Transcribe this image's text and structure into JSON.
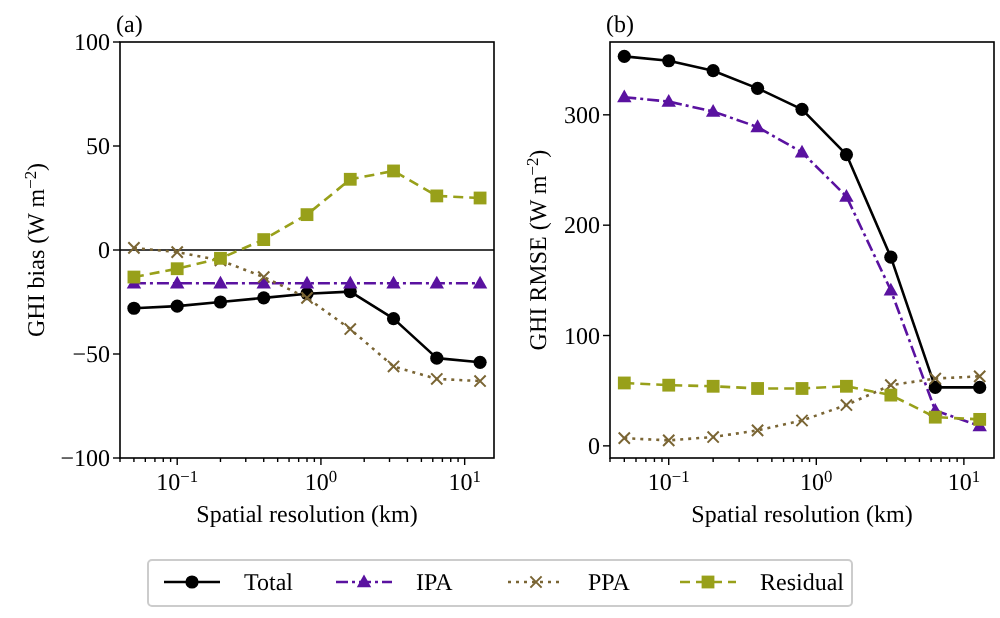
{
  "chart_data": [
    {
      "type": "line",
      "title": "(a)",
      "xlabel": "Spatial resolution (km)",
      "ylabel": "GHI bias (W m$^{−2}$)",
      "log": "x",
      "legend": "bottom",
      "x": [
        0.05,
        0.1,
        0.2,
        0.4,
        0.8,
        1.6,
        3.2,
        6.4,
        12.8
      ],
      "xlim": [
        0.04,
        16
      ],
      "ylim": [
        -100,
        100
      ],
      "yticks": [
        {
          "value": -100,
          "label": "−100"
        },
        {
          "value": -50,
          "label": "−50"
        },
        0,
        50,
        100
      ],
      "xticks": [
        {
          "value": 0.04,
          "label": null
        },
        {
          "value": 0.05,
          "label": null
        },
        {
          "value": 0.06,
          "label": null
        },
        {
          "value": 0.07,
          "label": null
        },
        {
          "value": 0.08,
          "label": null
        },
        {
          "value": 0.09,
          "label": null
        },
        {
          "value": 0.1,
          "label": "10$^{−1}$"
        },
        {
          "value": 0.2,
          "label": null
        },
        {
          "value": 0.3,
          "label": null
        },
        {
          "value": 0.4,
          "label": null
        },
        {
          "value": 0.5,
          "label": null
        },
        {
          "value": 0.6,
          "label": null
        },
        {
          "value": 0.7,
          "label": null
        },
        {
          "value": 0.8,
          "label": null
        },
        {
          "value": 0.9,
          "label": null
        },
        {
          "value": 1,
          "label": "10$^{0}$"
        },
        {
          "value": 2,
          "label": null
        },
        {
          "value": 3,
          "label": null
        },
        {
          "value": 4,
          "label": null
        },
        {
          "value": 5,
          "label": null
        },
        {
          "value": 6,
          "label": null
        },
        {
          "value": 7,
          "label": null
        },
        {
          "value": 8,
          "label": null
        },
        {
          "value": 9,
          "label": null
        },
        {
          "value": 10,
          "label": "10$^{1}$"
        }
      ],
      "ref_lines": [
        {
          "axis": "y",
          "value": 0,
          "color": "#000000"
        }
      ],
      "series": [
        {
          "name": "Total",
          "color": "#000000",
          "marker": "circle",
          "line_style": "solid",
          "values": [
            -28,
            -27,
            -25,
            -23,
            -21,
            -20,
            -33,
            -52,
            -54
          ]
        },
        {
          "name": "IPA",
          "color": "#5a12a0",
          "marker": "triangle",
          "line_style": "dashdot",
          "values": [
            -16,
            -16,
            -16,
            -16,
            -16,
            -16,
            -16,
            -16,
            -16
          ]
        },
        {
          "name": "PPA",
          "color": "#7a6534",
          "marker": "cross",
          "line_style": "dotted",
          "values": [
            1,
            -1,
            -5,
            -13,
            -23,
            -38,
            -56,
            -62,
            -63
          ]
        },
        {
          "name": "Residual",
          "color": "#98a01a",
          "marker": "square",
          "line_style": "dashed",
          "values": [
            -13,
            -9,
            -4,
            5,
            17,
            34,
            38,
            26,
            25
          ]
        }
      ]
    },
    {
      "type": "line",
      "title": "(b)",
      "xlabel": "Spatial resolution (km)",
      "ylabel": "GHI RMSE (W m$^{−2}$)",
      "log": "x",
      "x": [
        0.05,
        0.1,
        0.2,
        0.4,
        0.8,
        1.6,
        3.2,
        6.4,
        12.8
      ],
      "xlim": [
        0.04,
        16
      ],
      "ylim": [
        -11,
        366
      ],
      "yticks": [
        0,
        100,
        200,
        300
      ],
      "xticks": [
        {
          "value": 0.04,
          "label": null
        },
        {
          "value": 0.05,
          "label": null
        },
        {
          "value": 0.06,
          "label": null
        },
        {
          "value": 0.07,
          "label": null
        },
        {
          "value": 0.08,
          "label": null
        },
        {
          "value": 0.09,
          "label": null
        },
        {
          "value": 0.1,
          "label": "10$^{−1}$"
        },
        {
          "value": 0.2,
          "label": null
        },
        {
          "value": 0.3,
          "label": null
        },
        {
          "value": 0.4,
          "label": null
        },
        {
          "value": 0.5,
          "label": null
        },
        {
          "value": 0.6,
          "label": null
        },
        {
          "value": 0.7,
          "label": null
        },
        {
          "value": 0.8,
          "label": null
        },
        {
          "value": 0.9,
          "label": null
        },
        {
          "value": 1,
          "label": "10$^{0}$"
        },
        {
          "value": 2,
          "label": null
        },
        {
          "value": 3,
          "label": null
        },
        {
          "value": 4,
          "label": null
        },
        {
          "value": 5,
          "label": null
        },
        {
          "value": 6,
          "label": null
        },
        {
          "value": 7,
          "label": null
        },
        {
          "value": 8,
          "label": null
        },
        {
          "value": 9,
          "label": null
        },
        {
          "value": 10,
          "label": "10$^{1}$"
        }
      ],
      "series": [
        {
          "color": "#000000",
          "marker": "circle",
          "line_style": "solid",
          "values": [
            353,
            349,
            340,
            324,
            305,
            264,
            171,
            53,
            53
          ]
        },
        {
          "color": "#5a12a0",
          "marker": "triangle",
          "line_style": "dashdot",
          "values": [
            316,
            312,
            303,
            289,
            266,
            226,
            141,
            32,
            18
          ]
        },
        {
          "color": "#7a6534",
          "marker": "cross",
          "line_style": "dotted",
          "values": [
            7,
            5,
            8,
            14,
            23,
            37,
            55,
            61,
            63
          ]
        },
        {
          "color": "#98a01a",
          "marker": "square",
          "line_style": "dashed",
          "values": [
            57,
            55,
            54,
            52,
            52,
            54,
            46,
            26,
            24
          ]
        }
      ]
    }
  ]
}
